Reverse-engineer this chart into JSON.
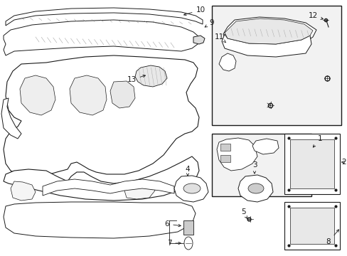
{
  "bg_color": "#ffffff",
  "line_color": "#1a1a1a",
  "box_fill": "#f0f0f0",
  "figsize": [
    4.89,
    3.6
  ],
  "dpi": 100
}
